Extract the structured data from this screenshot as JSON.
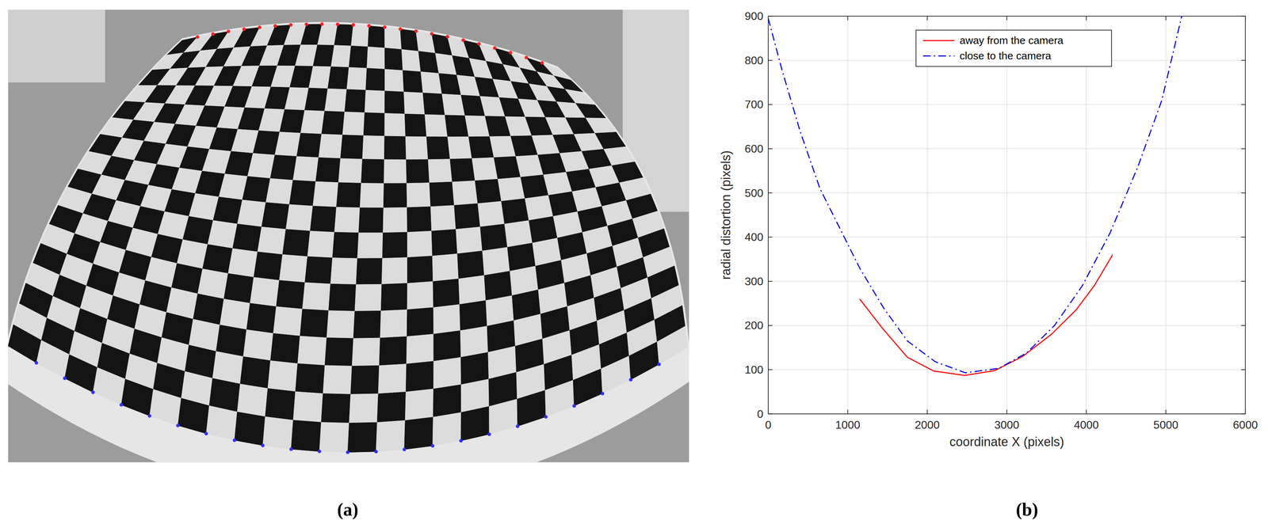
{
  "chart_data": {
    "type": "line",
    "xlabel": "coordinate X (pixels)",
    "ylabel": "radial distortion (pixels)",
    "xlim": [
      0,
      6000
    ],
    "xticks": [
      0,
      1000,
      2000,
      3000,
      4000,
      5000,
      6000
    ],
    "ylim": [
      0,
      900
    ],
    "yticks": [
      0,
      100,
      200,
      300,
      400,
      500,
      600,
      700,
      800,
      900
    ],
    "grid": true,
    "legend": "north",
    "series": [
      {
        "name": "away from the camera",
        "color": "#ff0000",
        "line_style": "solid",
        "x": [
          1150,
          1430,
          1750,
          2080,
          2470,
          2850,
          3200,
          3560,
          3870,
          4100,
          4330
        ],
        "values": [
          260,
          195,
          128,
          97,
          87,
          98,
          130,
          180,
          235,
          290,
          360
        ]
      },
      {
        "name": "close to the camera",
        "color": "#0000ff",
        "line_style": "dashdot",
        "x": [
          0,
          170,
          400,
          650,
          900,
          1150,
          1450,
          1750,
          2100,
          2480,
          2900,
          3250,
          3600,
          3950,
          4300,
          4650,
          4950,
          5200
        ],
        "values": [
          895,
          780,
          640,
          510,
          420,
          330,
          240,
          165,
          118,
          93,
          103,
          138,
          200,
          290,
          410,
          560,
          710,
          900
        ]
      }
    ]
  },
  "captions": {
    "a": "(a)",
    "b": "(b)"
  }
}
